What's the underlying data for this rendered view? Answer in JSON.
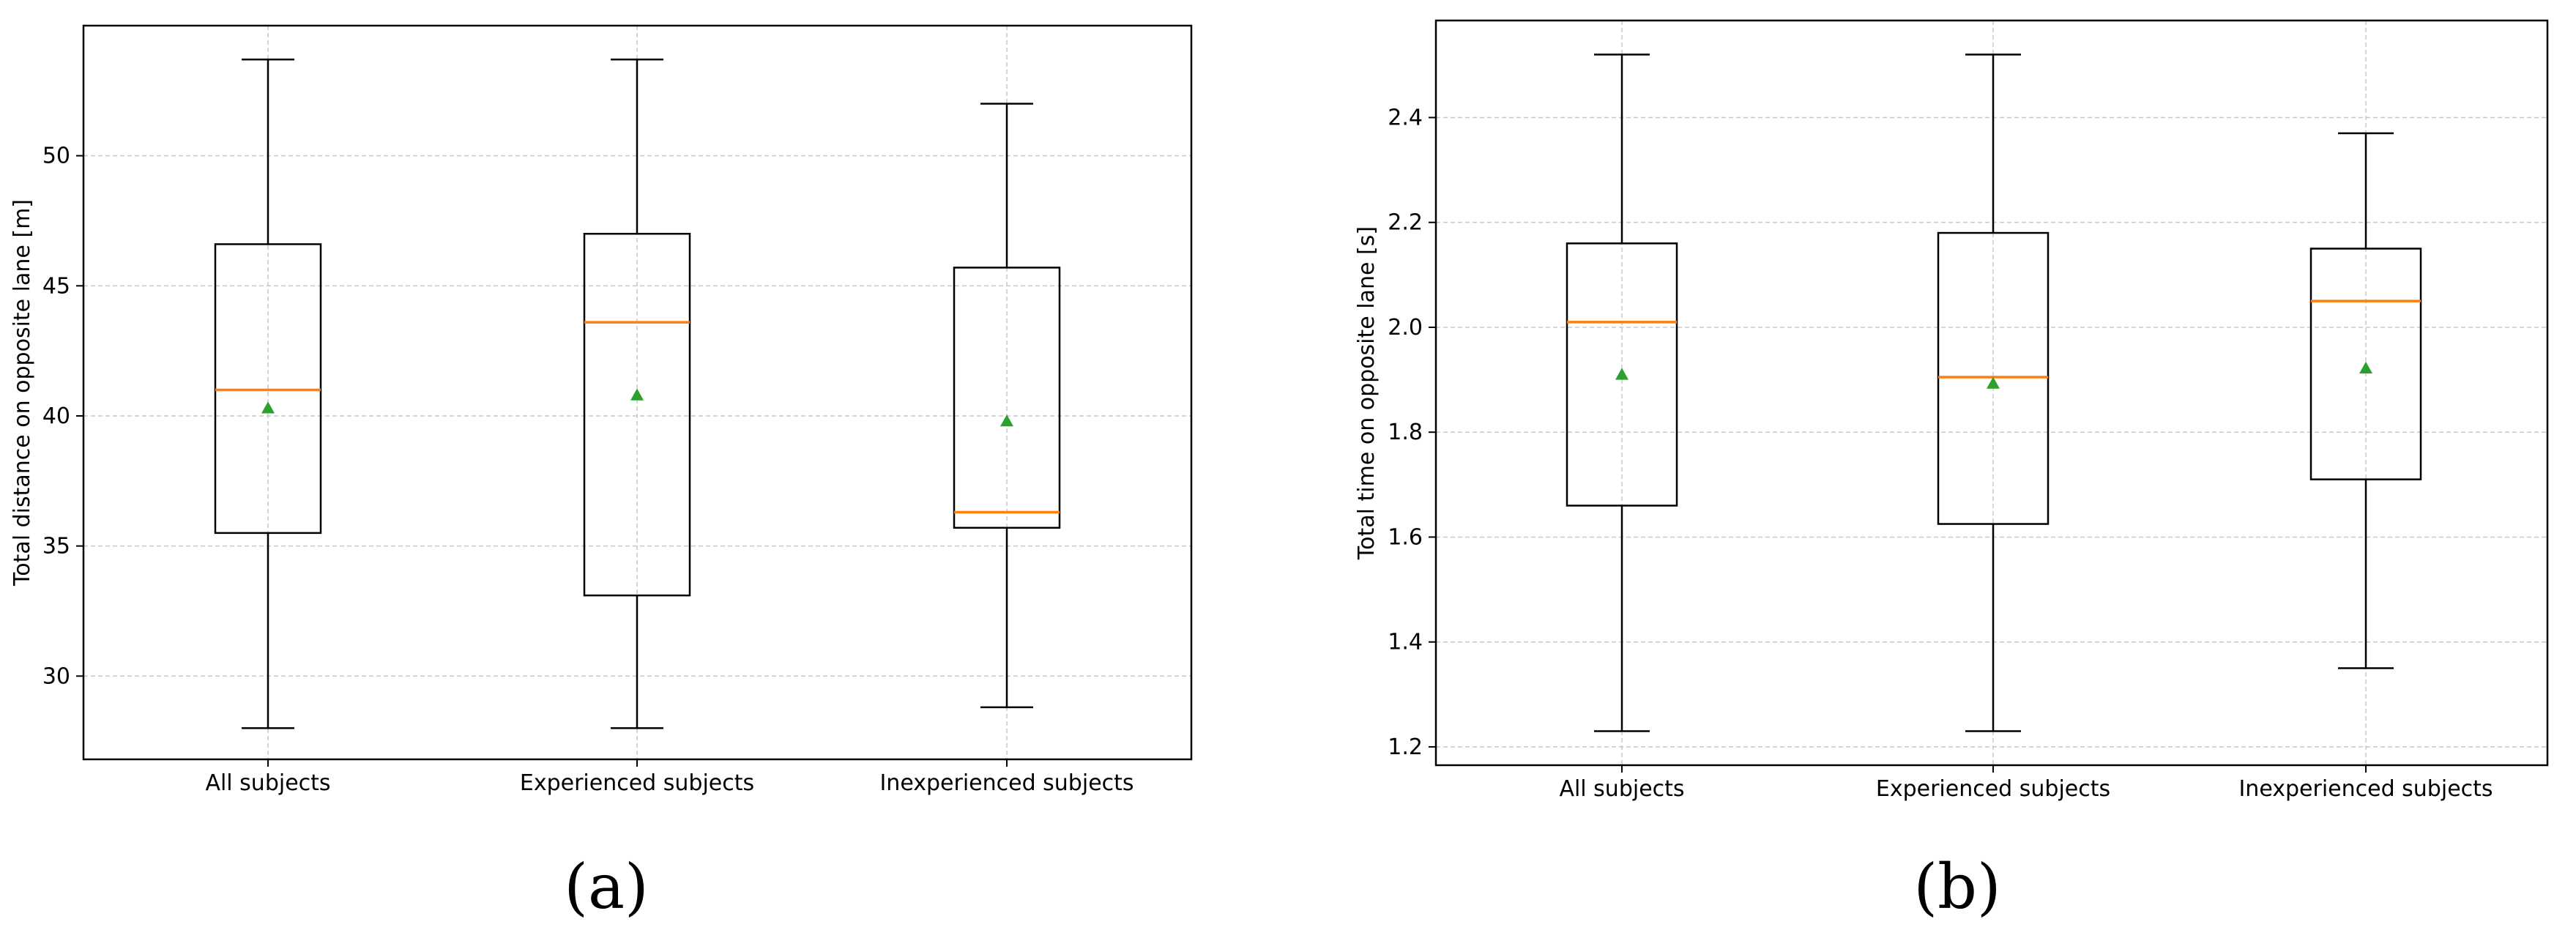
{
  "chart_data": [
    {
      "type": "box",
      "panel_label": "(a)",
      "xlabel": "",
      "ylabel": "Total distance on opposite lane [m]",
      "categories": [
        "All subjects",
        "Experienced subjects",
        "Inexperienced subjects"
      ],
      "ylim": [
        26.8,
        55.0
      ],
      "yticks": [
        30,
        35,
        40,
        45,
        50
      ],
      "grid": true,
      "boxes": [
        {
          "whisker_low": 28.0,
          "q1": 35.5,
          "median": 41.0,
          "q3": 46.6,
          "whisker_high": 53.7,
          "mean": 40.3
        },
        {
          "whisker_low": 28.0,
          "q1": 33.1,
          "median": 43.6,
          "q3": 47.0,
          "whisker_high": 53.7,
          "mean": 40.8
        },
        {
          "whisker_low": 28.8,
          "q1": 35.7,
          "median": 36.3,
          "q3": 45.7,
          "whisker_high": 52.0,
          "mean": 39.8
        }
      ]
    },
    {
      "type": "box",
      "panel_label": "(b)",
      "xlabel": "",
      "ylabel": "Total time on opposite lane [s]",
      "categories": [
        "All subjects",
        "Experienced subjects",
        "Inexperienced subjects"
      ],
      "ylim": [
        1.165,
        2.585
      ],
      "yticks": [
        1.2,
        1.4,
        1.6,
        1.8,
        2.0,
        2.2,
        2.4
      ],
      "grid": true,
      "boxes": [
        {
          "whisker_low": 1.23,
          "q1": 1.66,
          "median": 2.01,
          "q3": 2.16,
          "whisker_high": 2.52,
          "mean": 1.91
        },
        {
          "whisker_low": 1.23,
          "q1": 1.625,
          "median": 1.905,
          "q3": 2.18,
          "whisker_high": 2.52,
          "mean": 1.893
        },
        {
          "whisker_low": 1.35,
          "q1": 1.71,
          "median": 2.05,
          "q3": 2.15,
          "whisker_high": 2.37,
          "mean": 1.922
        }
      ]
    }
  ],
  "colors": {
    "box": "#000000",
    "median": "#ff7f0e",
    "mean": "#2ca02c",
    "grid": "#c8c8c8"
  }
}
